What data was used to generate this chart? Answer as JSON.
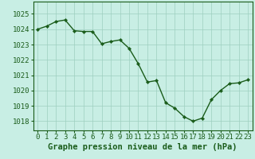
{
  "x": [
    0,
    1,
    2,
    3,
    4,
    5,
    6,
    7,
    8,
    9,
    10,
    11,
    12,
    13,
    14,
    15,
    16,
    17,
    18,
    19,
    20,
    21,
    22,
    23
  ],
  "y": [
    1024.0,
    1024.2,
    1024.5,
    1024.6,
    1023.9,
    1023.85,
    1023.85,
    1023.05,
    1023.2,
    1023.3,
    1022.75,
    1021.75,
    1020.55,
    1020.65,
    1019.2,
    1018.85,
    1018.3,
    1018.0,
    1018.2,
    1019.4,
    1020.0,
    1020.45,
    1020.5,
    1020.7
  ],
  "ylim_bottom": 1017.4,
  "ylim_top": 1025.8,
  "yticks": [
    1018,
    1019,
    1020,
    1021,
    1022,
    1023,
    1024,
    1025
  ],
  "xticks": [
    0,
    1,
    2,
    3,
    4,
    5,
    6,
    7,
    8,
    9,
    10,
    11,
    12,
    13,
    14,
    15,
    16,
    17,
    18,
    19,
    20,
    21,
    22,
    23
  ],
  "line_color": "#1a5c1a",
  "marker_color": "#1a5c1a",
  "bg_color": "#c8eee4",
  "grid_color": "#9ecfbf",
  "xlabel": "Graphe pression niveau de la mer (hPa)",
  "xlabel_fontsize": 7.5,
  "tick_fontsize": 6.5,
  "line_width": 1.0,
  "marker_size": 2.2
}
